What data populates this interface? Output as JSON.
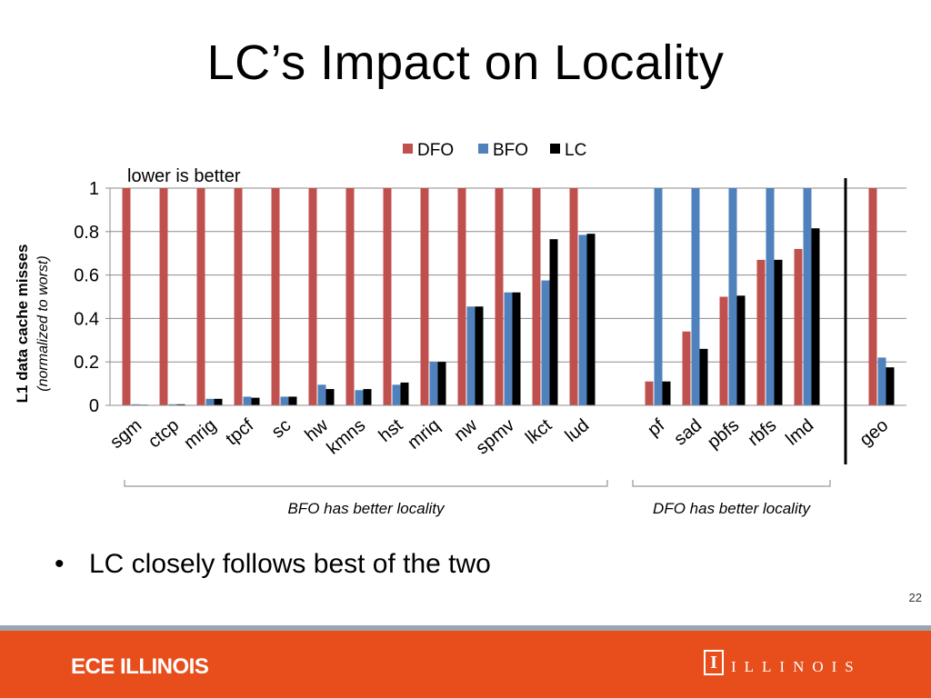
{
  "slide": {
    "title": "LC’s Impact on Locality",
    "bullet_symbol": "•",
    "bullet_text": "LC closely follows best of the two",
    "page_number": "22"
  },
  "footer": {
    "left_text": "ECE ILLINOIS",
    "logo_letter": "I",
    "logo_word": "ILLINOIS",
    "color": "#e84e1b"
  },
  "chart_data": {
    "type": "bar",
    "ylabel": "L1 data cache misses",
    "ylabel2": "(normalized to worst)",
    "ylim": [
      0,
      1
    ],
    "yticks": [
      "0",
      "0.2",
      "0.4",
      "0.6",
      "0.8",
      "1"
    ],
    "grid": true,
    "legend_position": "top",
    "annotation": "lower is better",
    "groups": [
      {
        "label": "BFO has better locality",
        "categories": [
          "sgm",
          "ctcp",
          "mrig",
          "tpcf",
          "sc",
          "hw",
          "kmns",
          "hst",
          "mriq",
          "nw",
          "spmv",
          "lkct",
          "lud"
        ]
      },
      {
        "label": "DFO has better locality",
        "categories": [
          "pf",
          "sad",
          "pbfs",
          "rbfs",
          "lmd"
        ]
      },
      {
        "label": "",
        "categories": [
          "geo"
        ]
      }
    ],
    "categories": [
      "sgm",
      "ctcp",
      "mrig",
      "tpcf",
      "sc",
      "hw",
      "kmns",
      "hst",
      "mriq",
      "nw",
      "spmv",
      "lkct",
      "lud",
      "pf",
      "sad",
      "pbfs",
      "rbfs",
      "lmd",
      "geo"
    ],
    "series": [
      {
        "name": "DFO",
        "color": "#c0504d",
        "values": [
          1,
          1,
          1,
          1,
          1,
          1,
          1,
          1,
          1,
          1,
          1,
          1,
          1,
          0.11,
          0.34,
          0.5,
          0.67,
          0.72,
          1
        ]
      },
      {
        "name": "BFO",
        "color": "#4f81bd",
        "values": [
          0.005,
          0.005,
          0.03,
          0.04,
          0.04,
          0.095,
          0.07,
          0.095,
          0.2,
          0.455,
          0.52,
          0.575,
          0.785,
          1,
          1,
          1,
          1,
          1,
          0.22
        ]
      },
      {
        "name": "LC",
        "color": "#000000",
        "values": [
          0.003,
          0.005,
          0.03,
          0.035,
          0.04,
          0.075,
          0.075,
          0.105,
          0.2,
          0.455,
          0.52,
          0.765,
          0.79,
          0.11,
          0.26,
          0.505,
          0.67,
          0.815,
          0.175
        ]
      }
    ]
  }
}
